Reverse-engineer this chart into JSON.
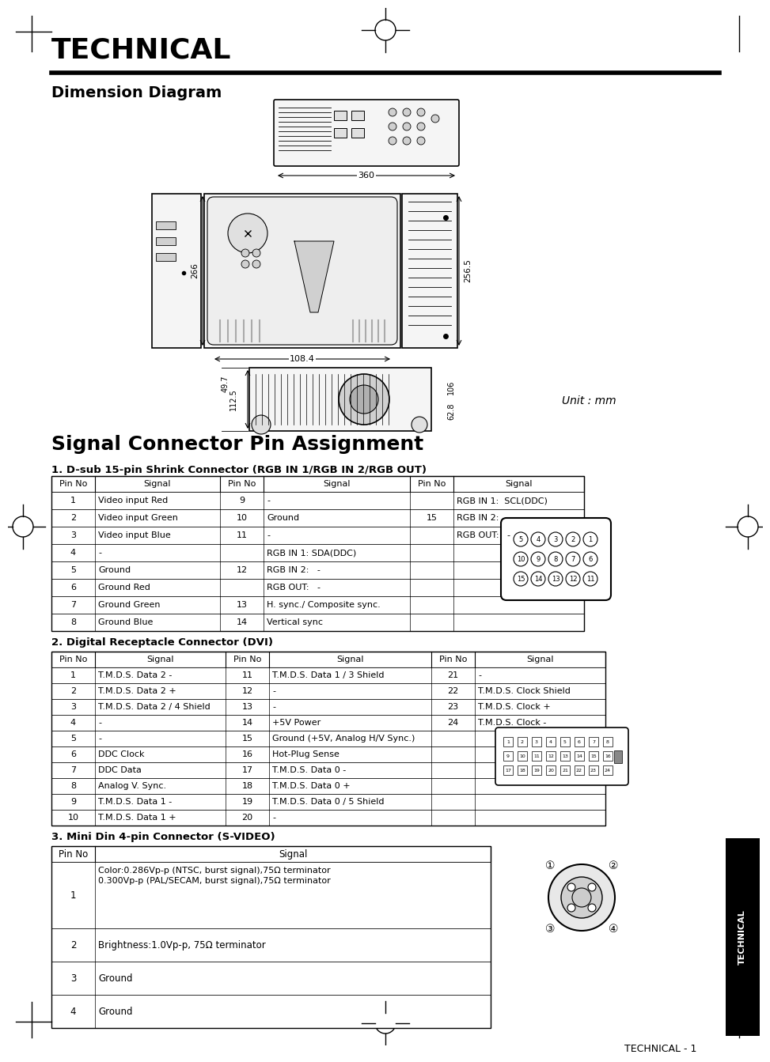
{
  "page_title": "TECHNICAL",
  "section1_title": "Dimension Diagram",
  "unit_label": "Unit : mm",
  "signal_title": "Signal Connector Pin Assignment",
  "sub1_title": "1. D-sub 15-pin Shrink Connector (RGB IN 1/RGB IN 2/RGB OUT)",
  "sub2_title": "2. Digital Receptacle Connector (DVI)",
  "sub3_title": "3. Mini Din 4-pin Connector (S-VIDEO)",
  "table1_rows": [
    [
      "1",
      "Video input Red",
      "9",
      "-",
      "",
      "RGB IN 1:  SCL(DDC)"
    ],
    [
      "2",
      "Video input Green",
      "10",
      "Ground",
      "15",
      "RGB IN 2:   -"
    ],
    [
      "3",
      "Video input Blue",
      "11",
      "-",
      "",
      "RGB OUT:   -"
    ],
    [
      "4",
      "-",
      "",
      "RGB IN 1: SDA(DDC)",
      "",
      ""
    ],
    [
      "5",
      "Ground",
      "12",
      "RGB IN 2:   -",
      "",
      ""
    ],
    [
      "6",
      "Ground Red",
      "",
      "RGB OUT:   -",
      "",
      ""
    ],
    [
      "7",
      "Ground Green",
      "13",
      "H. sync./ Composite sync.",
      "",
      ""
    ],
    [
      "8",
      "Ground Blue",
      "14",
      "Vertical sync",
      "",
      ""
    ]
  ],
  "table2_rows": [
    [
      "1",
      "T.M.D.S. Data 2 -",
      "11",
      "T.M.D.S. Data 1 / 3 Shield",
      "21",
      "-"
    ],
    [
      "2",
      "T.M.D.S. Data 2 +",
      "12",
      "-",
      "22",
      "T.M.D.S. Clock Shield"
    ],
    [
      "3",
      "T.M.D.S. Data 2 / 4 Shield",
      "13",
      "-",
      "23",
      "T.M.D.S. Clock +"
    ],
    [
      "4",
      "-",
      "14",
      "+5V Power",
      "24",
      "T.M.D.S. Clock -"
    ],
    [
      "5",
      "-",
      "15",
      "Ground (+5V, Analog H/V Sync.)",
      "",
      ""
    ],
    [
      "6",
      "DDC Clock",
      "16",
      "Hot-Plug Sense",
      "",
      ""
    ],
    [
      "7",
      "DDC Data",
      "17",
      "T.M.D.S. Data 0 -",
      "",
      ""
    ],
    [
      "8",
      "Analog V. Sync.",
      "18",
      "T.M.D.S. Data 0 +",
      "",
      ""
    ],
    [
      "9",
      "T.M.D.S. Data 1 -",
      "19",
      "T.M.D.S. Data 0 / 5 Shield",
      "",
      ""
    ],
    [
      "10",
      "T.M.D.S. Data 1 +",
      "20",
      "-",
      "",
      ""
    ]
  ],
  "table3_rows": [
    [
      "1",
      "Color:0.286Vp-p (NTSC, burst signal),75Ω terminator\n0.300Vp-p (PAL/SECAM, burst signal),75Ω terminator"
    ],
    [
      "2",
      "Brightness:1.0Vp-p, 75Ω terminator"
    ],
    [
      "3",
      "Ground"
    ],
    [
      "4",
      "Ground"
    ]
  ],
  "footer": "TECHNICAL - 1",
  "bg_color": "#ffffff"
}
